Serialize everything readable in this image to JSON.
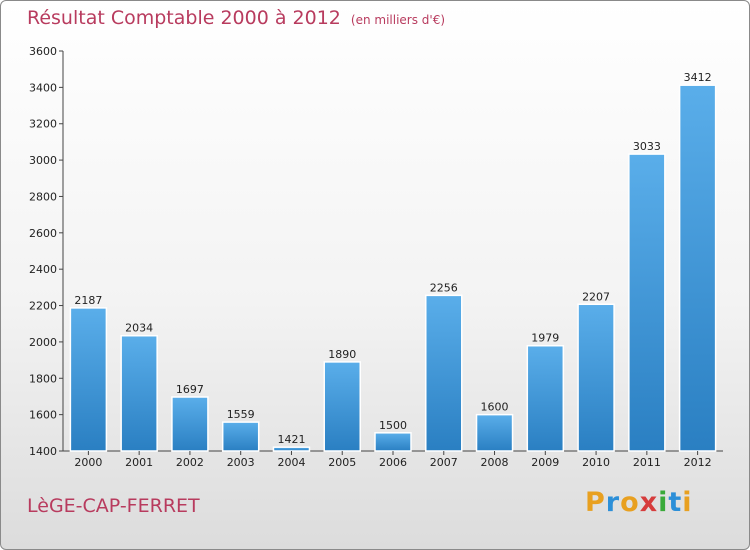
{
  "chart_data": {
    "type": "bar",
    "title": "Résultat Comptable 2000 à 2012",
    "unit": "(en milliers d'€)",
    "xlabel": "",
    "ylabel": "",
    "categories": [
      "2000",
      "2001",
      "2002",
      "2003",
      "2004",
      "2005",
      "2006",
      "2007",
      "2008",
      "2009",
      "2010",
      "2011",
      "2012"
    ],
    "values": [
      2187,
      2034,
      1697,
      1559,
      1421,
      1890,
      1500,
      2256,
      1600,
      1979,
      2207,
      3033,
      3412
    ],
    "ylim": [
      1400,
      3600
    ],
    "yticks": [
      1400,
      1600,
      1800,
      2000,
      2200,
      2400,
      2600,
      2800,
      3000,
      3200,
      3400,
      3600
    ],
    "grid": false,
    "bar_color": "#3f9ee0"
  },
  "commune": "LèGE-CAP-FERRET",
  "logo": {
    "letters": [
      "P",
      "r",
      "o",
      "x",
      "i",
      "t",
      "i"
    ],
    "colors": [
      "#e8a020",
      "#2c8fd8",
      "#e8a020",
      "#d63c3c",
      "#3aaa3a",
      "#2c8fd8",
      "#e8a020"
    ]
  }
}
